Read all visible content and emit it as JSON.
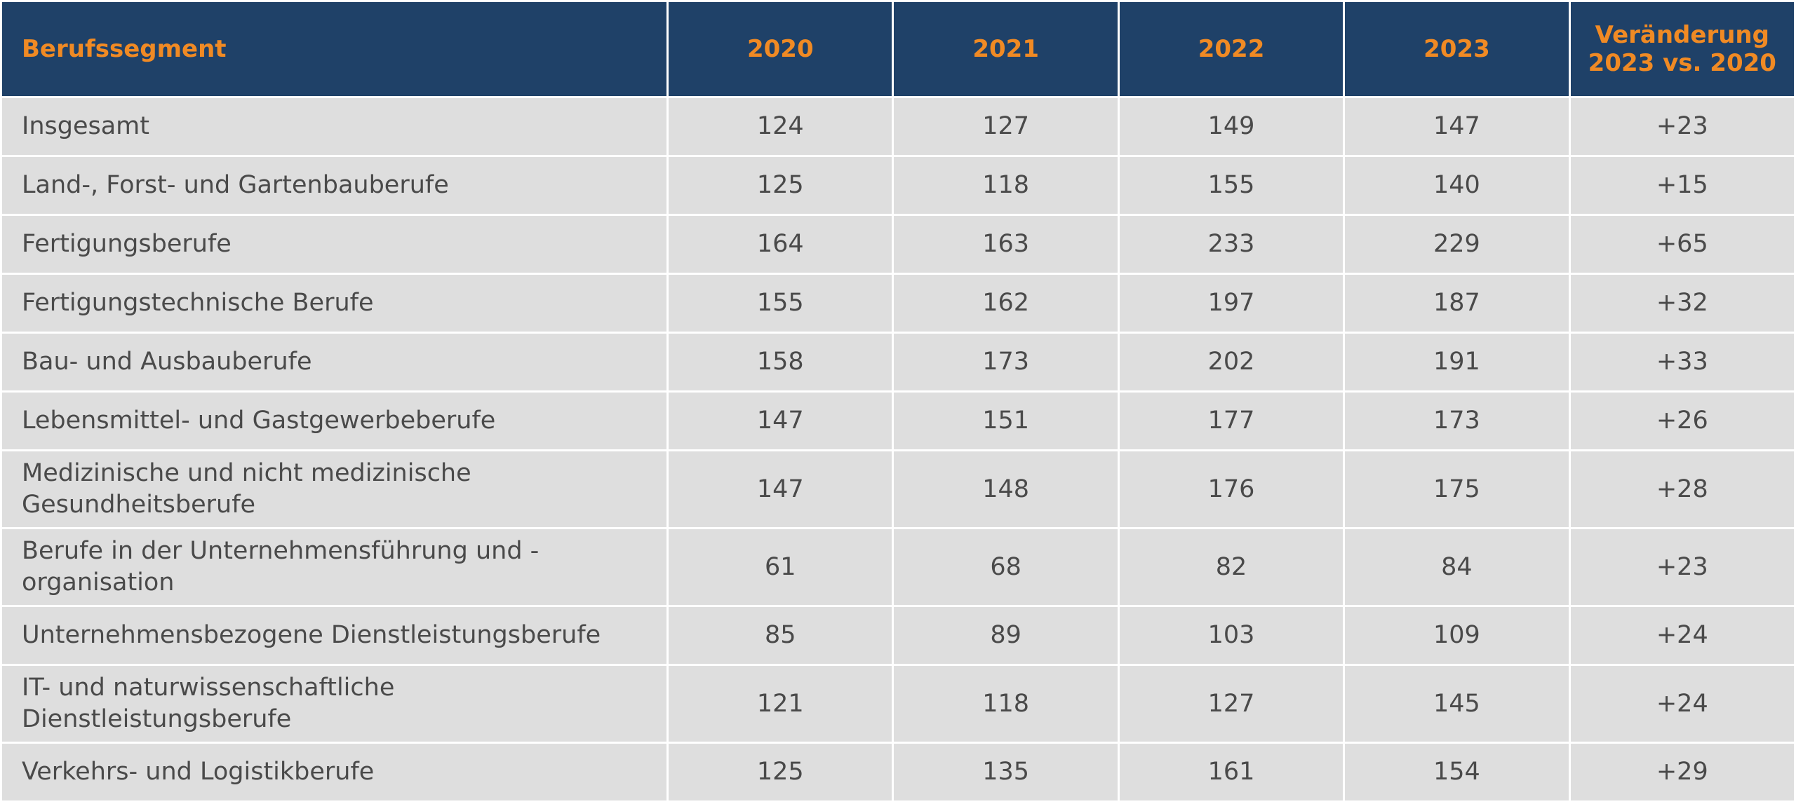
{
  "table": {
    "headers": [
      "Berufssegment",
      "2020",
      "2021",
      "2022",
      "2023",
      "Veränderung\n2023 vs. 2020"
    ],
    "rows": [
      [
        "Insgesamt",
        "124",
        "127",
        "149",
        "147",
        "+23"
      ],
      [
        "Land-, Forst- und Gartenbauberufe",
        "125",
        "118",
        "155",
        "140",
        "+15"
      ],
      [
        "Fertigungsberufe",
        "164",
        "163",
        "233",
        "229",
        "+65"
      ],
      [
        "Fertigungstechnische Berufe",
        "155",
        "162",
        "197",
        "187",
        "+32"
      ],
      [
        "Bau- und Ausbauberufe",
        "158",
        "173",
        "202",
        "191",
        "+33"
      ],
      [
        "Lebensmittel- und Gastgewerbeberufe",
        "147",
        "151",
        "177",
        "173",
        "+26"
      ],
      [
        "Medizinische und nicht medizinische Gesundheitsberufe",
        "147",
        "148",
        "176",
        "175",
        "+28"
      ],
      [
        "Berufe in der Unternehmensführung und -organisation",
        "61",
        "68",
        "82",
        "84",
        "+23"
      ],
      [
        "Unternehmensbezogene Dienstleistungsberufe",
        "85",
        "89",
        "103",
        "109",
        "+24"
      ],
      [
        "IT- und naturwissenschaftliche Dienstleistungsberufe",
        "121",
        "118",
        "127",
        "145",
        "+24"
      ],
      [
        "Verkehrs- und Logistikberufe",
        "125",
        "135",
        "161",
        "154",
        "+29"
      ]
    ]
  },
  "colors": {
    "header_bg": "#1f4168",
    "header_text": "#f08a24",
    "cell_bg": "#dedede",
    "cell_text": "#4a4a4a",
    "grid": "#ffffff"
  }
}
